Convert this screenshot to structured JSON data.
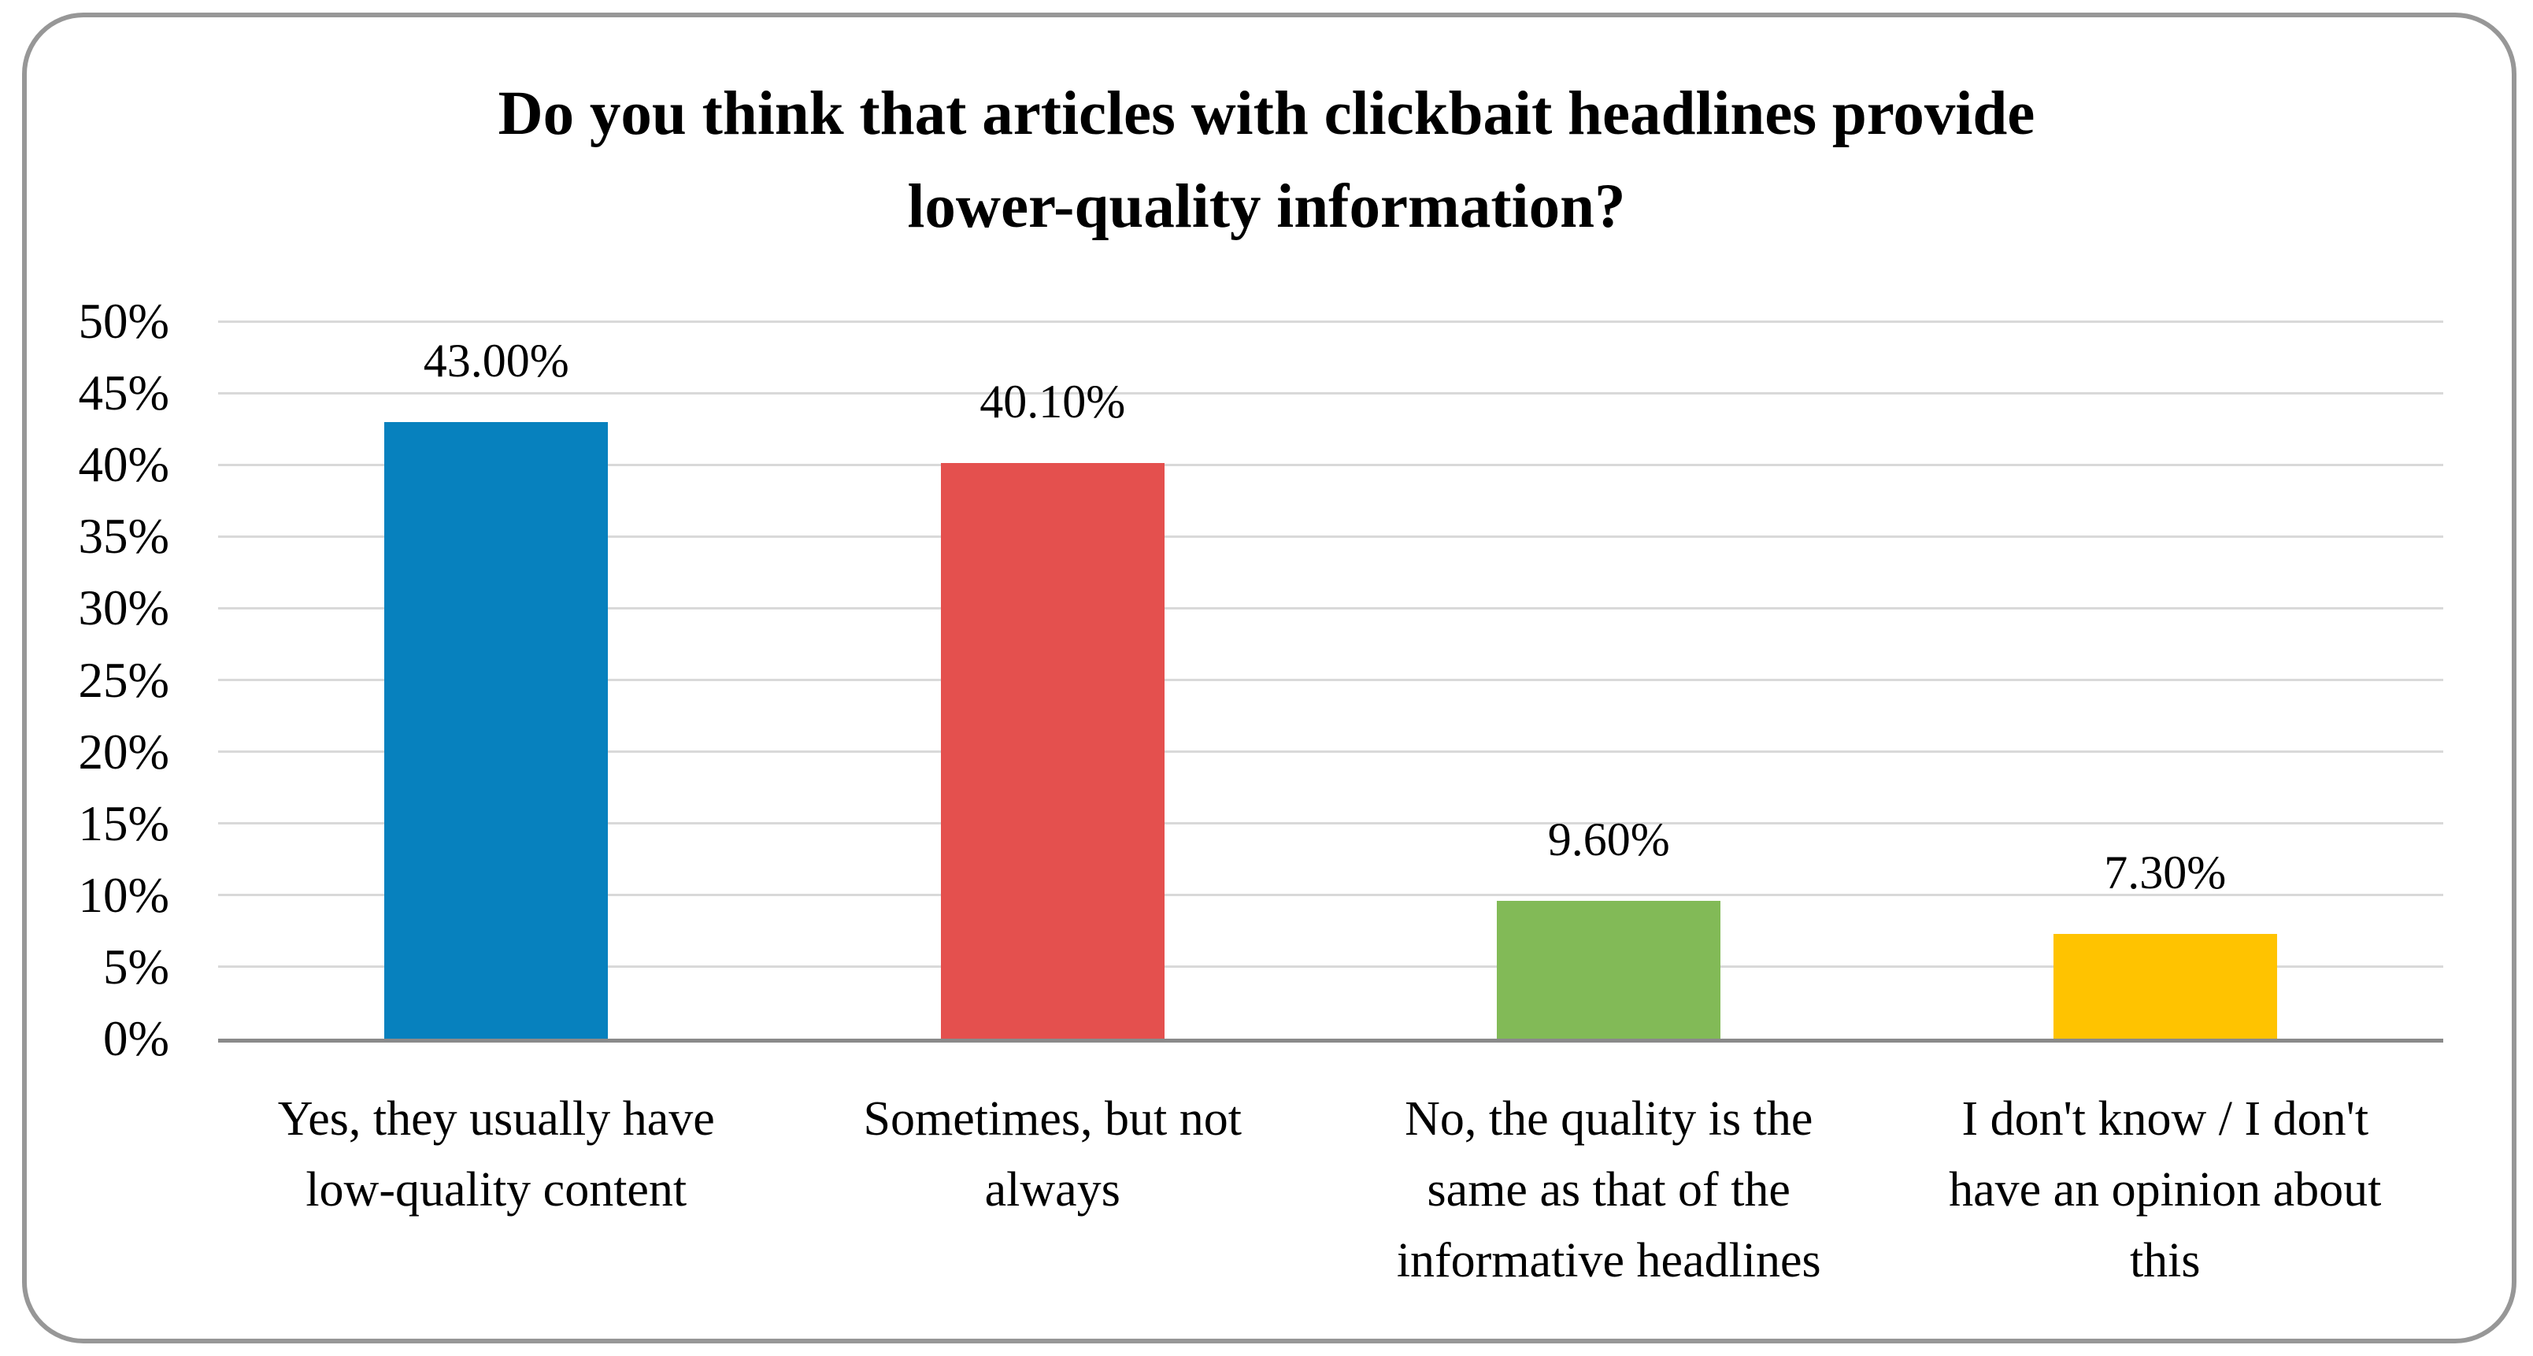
{
  "chart_data": {
    "type": "bar",
    "title": "Do you think that articles with clickbait headlines provide lower-quality information?",
    "title_lines": [
      "Do you think that articles with clickbait headlines provide",
      "lower-quality information?"
    ],
    "categories": [
      "Yes, they usually have low-quality content",
      "Sometimes, but not always",
      "No, the quality is the same as that of the informative headlines",
      "I don't know / I don't have an opinion about this"
    ],
    "category_lines": [
      [
        "Yes, they usually have",
        "low-quality content"
      ],
      [
        "Sometimes, but not",
        "always"
      ],
      [
        "No, the quality is the",
        "same as that of the",
        "informative headlines"
      ],
      [
        "I don't know / I don't",
        "have an opinion about",
        "this"
      ]
    ],
    "values": [
      43.0,
      40.1,
      9.6,
      7.3
    ],
    "data_labels": [
      "43.00%",
      "40.10%",
      "9.60%",
      "7.30%"
    ],
    "bar_colors": [
      "#0781BE",
      "#E4504E",
      "#82BA57",
      "#FFC300"
    ],
    "y_ticks": [
      "50%",
      "45%",
      "40%",
      "35%",
      "30%",
      "25%",
      "20%",
      "15%",
      "10%",
      "5%",
      "0%"
    ],
    "ylim": [
      0,
      50
    ],
    "xlabel": "",
    "ylabel": "",
    "grid": "horizontal",
    "legend": "none"
  },
  "style_colors": {
    "gridline": "#D9D9D9",
    "axis_line": "#8A8A8A",
    "frame_border": "#979797",
    "text": "#000000"
  }
}
